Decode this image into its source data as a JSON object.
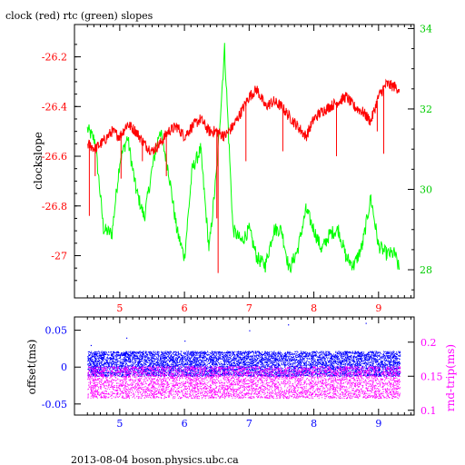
{
  "page": {
    "title": "clock (red) rtc (green) slopes",
    "footer": "2013-08-04 boson.physics.ubc.ca"
  },
  "colors": {
    "clock": "#ff0000",
    "rtc": "#00ff00",
    "offset": "#0000ff",
    "rndtrip": "#ff00ff",
    "axis": "#000000"
  },
  "chart_data": [
    {
      "type": "line",
      "title": "clock (red) rtc (green) slopes",
      "xlabel": "",
      "ylabel": "clockslope",
      "ylabel_right": "",
      "xlim": [
        4.3,
        9.55
      ],
      "ylim": [
        -27.17,
        -26.07
      ],
      "ylim_right": [
        27.3,
        34.1
      ],
      "x_ticks": [
        5,
        6,
        7,
        8,
        9
      ],
      "x_tick_labels": [
        "5",
        "6",
        "7",
        "8",
        "9"
      ],
      "y_ticks": [
        -26.2,
        -26.4,
        -26.6,
        -26.8,
        -27
      ],
      "y_tick_labels": [
        "-26.2",
        "-26.4",
        "-26.6",
        "-26.8",
        "-27"
      ],
      "y_ticks_right": [
        34,
        32,
        30,
        28
      ],
      "y_tick_labels_right": [
        "34",
        "32",
        "30",
        "28"
      ],
      "series": [
        {
          "name": "clock",
          "axis": "left",
          "color": "#ff0000",
          "x": [
            4.5,
            4.62,
            4.75,
            4.88,
            5.0,
            5.12,
            5.25,
            5.38,
            5.5,
            5.62,
            5.75,
            5.88,
            6.0,
            6.12,
            6.25,
            6.38,
            6.5,
            6.62,
            6.75,
            6.88,
            7.0,
            7.12,
            7.25,
            7.38,
            7.5,
            7.62,
            7.75,
            7.88,
            8.0,
            8.12,
            8.25,
            8.38,
            8.5,
            8.62,
            8.75,
            8.88,
            9.0,
            9.12,
            9.25,
            9.32
          ],
          "y": [
            -26.55,
            -26.57,
            -26.54,
            -26.5,
            -26.52,
            -26.47,
            -26.5,
            -26.55,
            -26.58,
            -26.55,
            -26.5,
            -26.48,
            -26.52,
            -26.48,
            -26.45,
            -26.5,
            -26.5,
            -26.52,
            -26.48,
            -26.42,
            -26.36,
            -26.33,
            -26.4,
            -26.38,
            -26.4,
            -26.44,
            -26.48,
            -26.52,
            -26.45,
            -26.42,
            -26.4,
            -26.38,
            -26.36,
            -26.4,
            -26.42,
            -26.46,
            -26.36,
            -26.31,
            -26.32,
            -26.33
          ]
        },
        {
          "name": "rtc",
          "axis": "right",
          "color": "#00ff00",
          "x": [
            4.5,
            4.62,
            4.75,
            4.88,
            5.0,
            5.12,
            5.25,
            5.38,
            5.5,
            5.62,
            5.75,
            5.88,
            6.0,
            6.12,
            6.25,
            6.38,
            6.5,
            6.62,
            6.75,
            6.88,
            7.0,
            7.12,
            7.25,
            7.38,
            7.5,
            7.62,
            7.75,
            7.88,
            8.0,
            8.12,
            8.25,
            8.38,
            8.5,
            8.62,
            8.75,
            8.88,
            9.0,
            9.12,
            9.25,
            9.32
          ],
          "y": [
            31.5,
            31.2,
            29.0,
            28.9,
            30.7,
            31.3,
            30.0,
            29.3,
            30.5,
            31.5,
            30.5,
            29.0,
            28.3,
            30.5,
            31.0,
            28.5,
            30.5,
            33.5,
            29.0,
            28.7,
            29.0,
            28.3,
            28.1,
            29.0,
            29.0,
            28.0,
            28.5,
            29.5,
            29.0,
            28.5,
            28.9,
            29.0,
            28.3,
            28.1,
            28.6,
            29.8,
            28.6,
            28.4,
            28.4,
            28.0
          ]
        }
      ],
      "spikes": {
        "series": "clock",
        "x": [
          4.53,
          4.62,
          5.02,
          5.35,
          5.72,
          6.5,
          6.52,
          6.6,
          6.95,
          7.52,
          8.35,
          8.98,
          9.08
        ],
        "y": [
          -26.84,
          -26.68,
          -26.69,
          -26.62,
          -26.68,
          -26.85,
          -27.07,
          -26.5,
          -26.62,
          -26.58,
          -26.6,
          -26.5,
          -26.59
        ]
      }
    },
    {
      "type": "scatter",
      "title": "",
      "xlabel": "",
      "ylabel": "offset(ms)",
      "ylabel_right": "rnd-trip(ms)",
      "xlim": [
        4.3,
        9.55
      ],
      "ylim": [
        -0.065,
        0.068
      ],
      "ylim_right": [
        0.093,
        0.237
      ],
      "x_ticks": [
        5,
        6,
        7,
        8,
        9
      ],
      "x_tick_labels": [
        "5",
        "6",
        "7",
        "8",
        "9"
      ],
      "y_ticks": [
        0.05,
        0,
        -0.05
      ],
      "y_tick_labels": [
        "0.05",
        "0",
        "-0.05"
      ],
      "y_ticks_right": [
        0.2,
        0.15,
        0.1
      ],
      "y_tick_labels_right": [
        "0.2",
        "0.15",
        "0.1"
      ],
      "series": [
        {
          "name": "offset",
          "axis": "left",
          "color": "#0000ff",
          "x_range": [
            4.5,
            9.33
          ],
          "y_band": [
            -0.012,
            0.022
          ]
        },
        {
          "name": "rnd-trip",
          "axis": "right",
          "color": "#ff00ff",
          "x_range": [
            4.5,
            9.33
          ],
          "y_band": [
            0.118,
            0.165
          ]
        }
      ]
    }
  ]
}
